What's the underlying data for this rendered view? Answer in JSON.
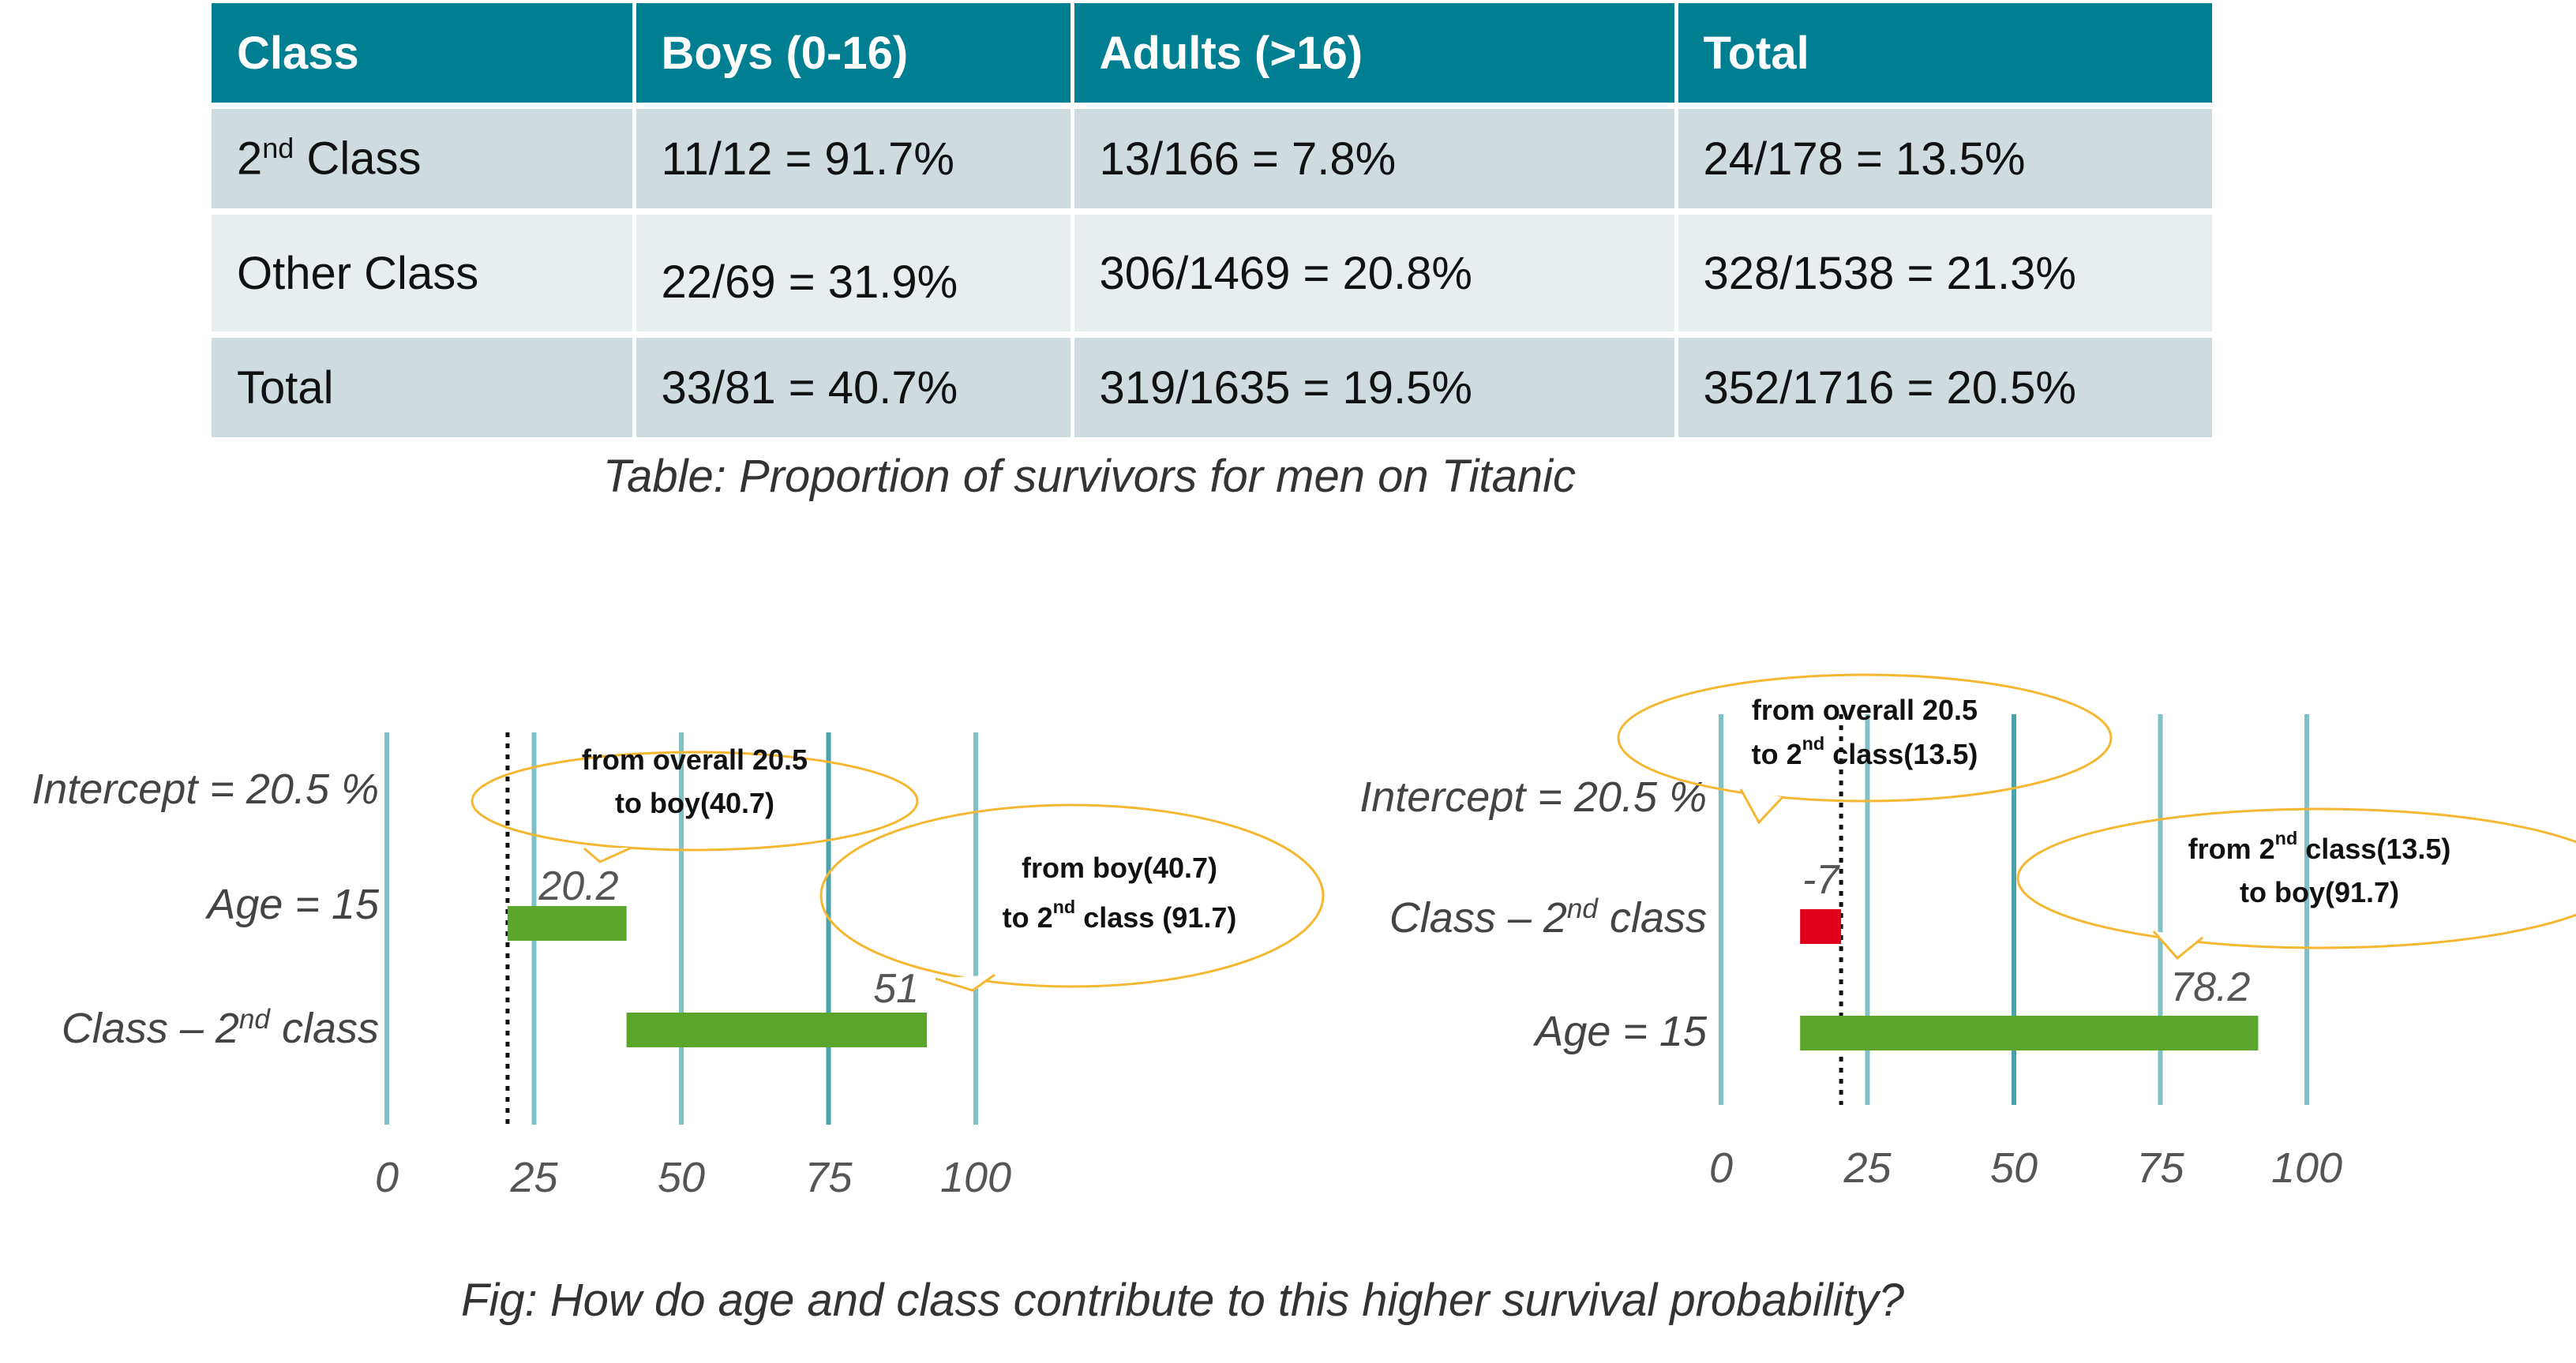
{
  "table": {
    "headers": [
      "Class",
      "Boys (0-16)",
      "Adults (>16)",
      "Total"
    ],
    "rows": [
      {
        "label_main": "2",
        "label_sup": "nd",
        "label_rest": " Class",
        "cells": [
          "11/12 = 91.7%",
          "13/166 = 7.8%",
          "24/178 = 13.5%"
        ]
      },
      {
        "label_main": "Other Class",
        "label_sup": "",
        "label_rest": "",
        "cells": [
          "22/69 = 31.9%",
          "306/1469 = 20.8%",
          "328/1538 = 21.3%"
        ]
      },
      {
        "label_main": "Total",
        "label_sup": "",
        "label_rest": "",
        "cells": [
          "33/81 = 40.7%",
          "319/1635 = 19.5%",
          "352/1716 = 20.5%"
        ]
      }
    ],
    "caption": "Table: Proportion of survivors for men on Titanic"
  },
  "figure_caption": "Fig: How do age and class contribute to this higher survival probability?",
  "colors": {
    "header_bg": "#017f92",
    "row_dark": "#cfdcdf",
    "row_light": "#e8eef0",
    "gridline": "#7fc1c6",
    "positive_bar": "#5aa52a",
    "negative_bar": "#e0001b",
    "callout_border": "#f5b731"
  },
  "chart_data": [
    {
      "type": "bar",
      "orientation": "horizontal waterfall",
      "x_ticks": [
        "0",
        "25",
        "50",
        "75",
        "100"
      ],
      "xlim": [
        0,
        100
      ],
      "intercept": 20.5,
      "rows": [
        {
          "label": "Intercept = 20.5 %"
        },
        {
          "label": "Age  =  15",
          "start": 20.5,
          "value": 20.2,
          "value_label": "20.2"
        },
        {
          "label_main": "Class – 2",
          "label_sup": "nd",
          "label_rest": " class",
          "start": 40.7,
          "value": 51,
          "value_label": "51"
        }
      ],
      "callouts": [
        {
          "line1": "from overall 20.5",
          "line2": "to boy(40.7)"
        },
        {
          "line1": "from boy(40.7)",
          "line2_main": "to 2",
          "line2_sup": "nd",
          "line2_rest": " class (91.7)"
        }
      ]
    },
    {
      "type": "bar",
      "orientation": "horizontal waterfall",
      "x_ticks": [
        "0",
        "25",
        "50",
        "75",
        "100"
      ],
      "xlim": [
        0,
        100
      ],
      "intercept": 20.5,
      "rows": [
        {
          "label": "Intercept = 20.5 %"
        },
        {
          "label_main": "Class – 2",
          "label_sup": "nd",
          "label_rest": " class",
          "start": 20.5,
          "value": -7,
          "value_label": "-7"
        },
        {
          "label": "Age = 15",
          "start": 13.5,
          "value": 78.2,
          "value_label": "78.2"
        }
      ],
      "callouts": [
        {
          "line1": "from overall 20.5",
          "line2_main": "to 2",
          "line2_sup": "nd",
          "line2_rest": " class(13.5)"
        },
        {
          "line1_main": "from 2",
          "line1_sup": "nd",
          "line1_rest": " class(13.5)",
          "line2": "to boy(91.7)"
        }
      ]
    }
  ]
}
